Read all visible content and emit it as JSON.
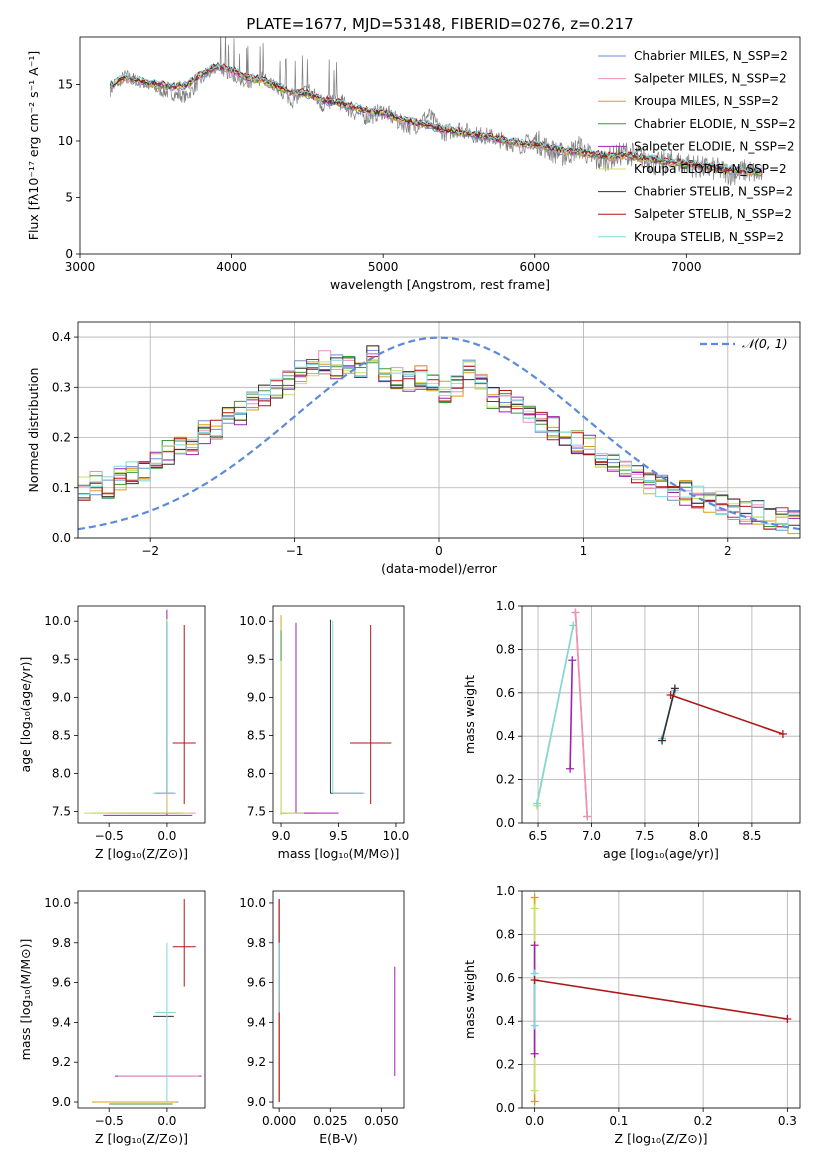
{
  "figure_title": "PLATE=1677, MJD=53148, FIBERID=0276, z=0.217",
  "model_colors": [
    "#6a8fd6",
    "#ef8ebf",
    "#d4a017",
    "#3a9a3a",
    "#a020b0",
    "#c8e06a",
    "#333333",
    "#b01717",
    "#7fd8e0"
  ],
  "chart_data": [
    {
      "id": "spectrum",
      "type": "line",
      "xlabel": "wavelength [Angstrom, rest frame]",
      "ylabel": "Flux [fλ10⁻¹⁷ erg cm⁻² s⁻¹ A⁻¹]",
      "xlim": [
        3000,
        7750
      ],
      "ylim": [
        0,
        19.2
      ],
      "xticks": [
        3000,
        4000,
        5000,
        6000,
        7000
      ],
      "yticks": [
        0,
        5,
        10,
        15
      ],
      "grid": false,
      "legend_position": "top-right",
      "data_color": "#808080",
      "x": [
        3200,
        3300,
        3400,
        3500,
        3600,
        3700,
        3800,
        3900,
        4000,
        4100,
        4200,
        4300,
        4400,
        4500,
        4600,
        4700,
        4800,
        4900,
        5000,
        5100,
        5200,
        5300,
        5400,
        5500,
        5600,
        5700,
        5800,
        5900,
        6000,
        6100,
        6200,
        6300,
        6400,
        6500,
        6600,
        6700,
        6800,
        6900,
        7000,
        7100,
        7200,
        7300,
        7400,
        7500
      ],
      "data_flux": [
        14.5,
        15.8,
        15.2,
        14.6,
        14.2,
        13.9,
        15.4,
        16.5,
        15.9,
        14.8,
        15.6,
        14.7,
        13.5,
        14.6,
        13.2,
        13.7,
        12.6,
        12.1,
        12.7,
        11.7,
        11.2,
        12.3,
        10.7,
        11.1,
        10.6,
        10.4,
        10.0,
        9.6,
        10.1,
        9.2,
        8.7,
        9.5,
        8.2,
        8.5,
        9.0,
        8.6,
        7.9,
        8.2,
        8.0,
        7.6,
        7.5,
        7.1,
        7.4,
        7.0
      ],
      "model_flux": [
        14.9,
        15.6,
        15.3,
        15.0,
        14.8,
        14.9,
        15.9,
        16.6,
        16.3,
        15.6,
        15.4,
        14.8,
        14.3,
        14.2,
        13.6,
        13.4,
        13.0,
        12.6,
        12.5,
        12.0,
        11.6,
        11.4,
        11.0,
        10.8,
        10.6,
        10.3,
        10.0,
        9.8,
        9.7,
        9.4,
        9.1,
        9.0,
        8.8,
        8.6,
        8.7,
        8.5,
        8.3,
        8.1,
        8.0,
        7.8,
        7.6,
        7.4,
        7.3,
        7.2
      ],
      "series": [
        {
          "name": "Chabrier MILES, N_SSP=2"
        },
        {
          "name": "Salpeter MILES, N_SSP=2"
        },
        {
          "name": "Kroupa MILES, N_SSP=2"
        },
        {
          "name": "Chabrier ELODIE, N_SSP=2"
        },
        {
          "name": "Salpeter ELODIE, N_SSP=2"
        },
        {
          "name": "Kroupa ELODIE, N_SSP=2"
        },
        {
          "name": "Chabrier STELIB, N_SSP=2"
        },
        {
          "name": "Salpeter STELIB, N_SSP=2"
        },
        {
          "name": "Kroupa STELIB, N_SSP=2"
        }
      ]
    },
    {
      "id": "residuals",
      "type": "line",
      "xlabel": "(data-model)/error",
      "ylabel": "Normed distribution",
      "xlim": [
        -2.5,
        2.5
      ],
      "ylim": [
        0,
        0.43
      ],
      "xticks": [
        -2,
        -1,
        0,
        1,
        2
      ],
      "yticks": [
        0.0,
        0.1,
        0.2,
        0.3,
        0.4
      ],
      "grid": true,
      "legend_position": "top-right",
      "gaussian_label": "𝒩(0, 1)",
      "bin_edges_range": [
        -2.5,
        2.5
      ],
      "hist_base": [
        0.1,
        0.11,
        0.1,
        0.12,
        0.13,
        0.13,
        0.15,
        0.17,
        0.18,
        0.19,
        0.21,
        0.22,
        0.24,
        0.25,
        0.27,
        0.28,
        0.3,
        0.31,
        0.33,
        0.34,
        0.35,
        0.34,
        0.35,
        0.34,
        0.36,
        0.33,
        0.32,
        0.31,
        0.32,
        0.3,
        0.29,
        0.3,
        0.33,
        0.31,
        0.28,
        0.27,
        0.26,
        0.24,
        0.23,
        0.22,
        0.2,
        0.19,
        0.18,
        0.16,
        0.15,
        0.14,
        0.13,
        0.11,
        0.1,
        0.09,
        0.09,
        0.08,
        0.07,
        0.07,
        0.06,
        0.05,
        0.05,
        0.04,
        0.04,
        0.03
      ]
    },
    {
      "id": "age_vs_Z",
      "type": "scatter",
      "xlabel": "Z [log₁₀(Z/Z⊙)]",
      "ylabel": "age  [log₁₀(age/yr)]",
      "xlim": [
        -0.77,
        0.33
      ],
      "ylim": [
        7.35,
        10.2
      ],
      "xticks": [
        -0.5,
        0.0
      ],
      "yticks": [
        7.5,
        8.0,
        8.5,
        9.0,
        9.5,
        10.0
      ],
      "grid": false,
      "points": [
        {
          "s": 0,
          "x": 0.0,
          "y": 7.48,
          "xerr": [
            0.12,
            0.12
          ],
          "yerr": [
            0.02,
            0.02
          ]
        },
        {
          "s": 1,
          "x": 0.0,
          "y": 7.48,
          "xerr": [
            0.4,
            0.25
          ],
          "yerr": [
            0.02,
            0.02
          ]
        },
        {
          "s": 2,
          "x": 0.0,
          "y": 7.48,
          "xerr": [
            0.65,
            0.15
          ],
          "yerr": [
            0.02,
            0.02
          ]
        },
        {
          "s": 3,
          "x": 0.0,
          "y": 7.48,
          "xerr": [
            0.5,
            0.1
          ],
          "yerr": [
            0.02,
            0.02
          ]
        },
        {
          "s": 4,
          "x": 0.0,
          "y": 7.45,
          "xerr": [
            0.55,
            0.22
          ],
          "yerr": [
            0.0,
            2.7
          ]
        },
        {
          "s": 5,
          "x": 0.0,
          "y": 7.48,
          "xerr": [
            0.72,
            0.2
          ],
          "yerr": [
            0.0,
            2.55
          ]
        },
        {
          "s": 6,
          "x": 0.0,
          "y": 7.74,
          "xerr": [
            0.1,
            0.06
          ],
          "yerr": [
            0.0,
            2.25
          ]
        },
        {
          "s": 7,
          "x": 0.15,
          "y": 8.4,
          "xerr": [
            0.1,
            0.1
          ],
          "yerr": [
            0.8,
            1.55
          ]
        },
        {
          "s": 8,
          "x": 0.0,
          "y": 7.74,
          "xerr": [
            0.12,
            0.08
          ],
          "yerr": [
            0.0,
            2.27
          ]
        }
      ]
    },
    {
      "id": "age_vs_mass",
      "type": "scatter",
      "xlabel": "mass [log₁₀(M/M⊙)]",
      "ylabel": "",
      "xlim": [
        8.93,
        10.07
      ],
      "ylim": [
        7.35,
        10.2
      ],
      "xticks": [
        9.0,
        9.5,
        10.0
      ],
      "yticks": [
        7.5,
        8.0,
        8.5,
        9.0,
        9.5,
        10.0
      ],
      "grid": false,
      "points": [
        {
          "s": 0,
          "x": 9.0,
          "y": 7.48,
          "xerr": [
            0.0,
            0.12
          ],
          "yerr": [
            0.02,
            0.02
          ]
        },
        {
          "s": 1,
          "x": 9.0,
          "y": 7.48,
          "xerr": [
            0.0,
            0.3
          ],
          "yerr": [
            0.02,
            0.02
          ]
        },
        {
          "s": 2,
          "x": 9.0,
          "y": 7.48,
          "xerr": [
            0.0,
            0.08
          ],
          "yerr": [
            0.0,
            2.6
          ]
        },
        {
          "s": 3,
          "x": 9.0,
          "y": 7.48,
          "xerr": [
            0.0,
            0.05
          ],
          "yerr": [
            0.0,
            2.4
          ]
        },
        {
          "s": 4,
          "x": 9.13,
          "y": 7.48,
          "xerr": [
            0.0,
            0.37
          ],
          "yerr": [
            0.0,
            2.5
          ]
        },
        {
          "s": 5,
          "x": 9.0,
          "y": 7.48,
          "xerr": [
            0.0,
            0.2
          ],
          "yerr": [
            0.0,
            2.0
          ]
        },
        {
          "s": 6,
          "x": 9.43,
          "y": 7.74,
          "xerr": [
            0.0,
            0.28
          ],
          "yerr": [
            0.0,
            2.28
          ]
        },
        {
          "s": 7,
          "x": 9.78,
          "y": 8.4,
          "xerr": [
            0.18,
            0.18
          ],
          "yerr": [
            0.8,
            1.55
          ]
        },
        {
          "s": 8,
          "x": 9.45,
          "y": 7.74,
          "xerr": [
            0.0,
            0.28
          ],
          "yerr": [
            0.0,
            2.27
          ]
        }
      ]
    },
    {
      "id": "weight_vs_age",
      "type": "line",
      "xlabel": "age  [log₁₀(age/yr)]",
      "ylabel": "mass weight",
      "xlim": [
        6.35,
        8.95
      ],
      "ylim": [
        0.0,
        1.0
      ],
      "xticks": [
        6.5,
        7.0,
        7.5,
        8.0,
        8.5
      ],
      "yticks": [
        0.0,
        0.2,
        0.4,
        0.6,
        0.8,
        1.0
      ],
      "grid": true,
      "segments": [
        {
          "s": 5,
          "x": [
            6.49,
            6.83
          ],
          "y": [
            0.08,
            0.91
          ]
        },
        {
          "s": 8,
          "x": [
            6.49,
            6.83
          ],
          "y": [
            0.09,
            0.91
          ]
        },
        {
          "s": 4,
          "x": [
            6.8,
            6.82
          ],
          "y": [
            0.25,
            0.75
          ]
        },
        {
          "s": 2,
          "x": [
            6.85,
            6.96
          ],
          "y": [
            0.97,
            0.03
          ]
        },
        {
          "s": 1,
          "x": [
            6.85,
            6.96
          ],
          "y": [
            0.97,
            0.03
          ]
        },
        {
          "s": 8,
          "x": [
            7.66,
            7.78
          ],
          "y": [
            0.39,
            0.61
          ]
        },
        {
          "s": 6,
          "x": [
            7.66,
            7.78
          ],
          "y": [
            0.38,
            0.62
          ]
        },
        {
          "s": 7,
          "x": [
            7.74,
            8.79
          ],
          "y": [
            0.59,
            0.41
          ]
        }
      ]
    },
    {
      "id": "mass_vs_Z",
      "type": "scatter",
      "xlabel": "Z [log₁₀(Z/Z⊙)]",
      "ylabel": "mass [log₁₀(M/M⊙)]",
      "xlim": [
        -0.77,
        0.33
      ],
      "ylim": [
        8.97,
        10.06
      ],
      "xticks": [
        -0.5,
        0.0
      ],
      "yticks": [
        9.0,
        9.2,
        9.4,
        9.6,
        9.8,
        10.0
      ],
      "grid": false,
      "points": [
        {
          "s": 0,
          "x": 0.0,
          "y": 9.0,
          "xerr": [
            0.6,
            0.1
          ],
          "yerr": [
            0.0,
            0.0
          ]
        },
        {
          "s": 2,
          "x": 0.0,
          "y": 9.0,
          "xerr": [
            0.65,
            0.08
          ],
          "yerr": [
            0.0,
            0.0
          ]
        },
        {
          "s": 3,
          "x": 0.0,
          "y": 8.99,
          "xerr": [
            0.5,
            0.05
          ],
          "yerr": [
            0.0,
            0.0
          ]
        },
        {
          "s": 4,
          "x": 0.0,
          "y": 9.13,
          "xerr": [
            0.45,
            0.3
          ],
          "yerr": [
            0.0,
            0.0
          ]
        },
        {
          "s": 1,
          "x": 0.0,
          "y": 9.13,
          "xerr": [
            0.42,
            0.28
          ],
          "yerr": [
            0.0,
            0.0
          ]
        },
        {
          "s": 5,
          "x": 0.0,
          "y": 9.45,
          "xerr": [
            0.1,
            0.08
          ],
          "yerr": [
            0.0,
            0.0
          ]
        },
        {
          "s": 6,
          "x": 0.0,
          "y": 9.43,
          "xerr": [
            0.12,
            0.06
          ],
          "yerr": [
            0.0,
            0.0
          ]
        },
        {
          "s": 8,
          "x": 0.0,
          "y": 9.45,
          "xerr": [
            0.1,
            0.06
          ],
          "yerr": [
            0.45,
            0.35
          ]
        },
        {
          "s": 7,
          "x": 0.15,
          "y": 9.78,
          "xerr": [
            0.1,
            0.1
          ],
          "yerr": [
            0.2,
            0.24
          ]
        }
      ]
    },
    {
      "id": "mass_vs_EBV",
      "type": "scatter",
      "xlabel": "E(B-V)",
      "ylabel": "",
      "xlim": [
        -0.003,
        0.061
      ],
      "ylim": [
        8.97,
        10.06
      ],
      "xticks": [
        0.0,
        0.025,
        0.05
      ],
      "yticks": [
        9.0,
        9.2,
        9.4,
        9.6,
        9.8,
        10.0
      ],
      "grid": false,
      "points": [
        {
          "s": 6,
          "x": 0.0,
          "y": 9.2,
          "xerr": [
            0,
            0
          ],
          "yerr": [
            0.2,
            0.82
          ]
        },
        {
          "s": 1,
          "x": 0.0,
          "y": 9.4,
          "xerr": [
            0,
            0
          ],
          "yerr": [
            0.4,
            0.4
          ]
        },
        {
          "s": 2,
          "x": 0.0,
          "y": 9.25,
          "xerr": [
            0,
            0
          ],
          "yerr": [
            0.25,
            0.3
          ]
        },
        {
          "s": 7,
          "x": 0.0,
          "y": 9.5,
          "xerr": [
            0,
            0
          ],
          "yerr": [
            0.5,
            0.52
          ]
        },
        {
          "s": 8,
          "x": 0.0,
          "y": 9.6,
          "xerr": [
            0,
            0
          ],
          "yerr": [
            0.15,
            0.2
          ]
        },
        {
          "s": 4,
          "x": 0.0565,
          "y": 9.4,
          "xerr": [
            0,
            0
          ],
          "yerr": [
            0.27,
            0.28
          ]
        }
      ]
    },
    {
      "id": "weight_vs_Z",
      "type": "line",
      "xlabel": "Z [log₁₀(Z/Z⊙)]",
      "ylabel": "mass weight",
      "xlim": [
        -0.015,
        0.315
      ],
      "ylim": [
        0.0,
        1.0
      ],
      "xticks": [
        0.0,
        0.1,
        0.2,
        0.3
      ],
      "yticks": [
        0.0,
        0.2,
        0.4,
        0.6,
        0.8,
        1.0
      ],
      "grid": true,
      "segments": [
        {
          "s": 2,
          "x": [
            0.0,
            0.0
          ],
          "y": [
            0.03,
            0.97
          ]
        },
        {
          "s": 5,
          "x": [
            0.0,
            0.0
          ],
          "y": [
            0.08,
            0.92
          ]
        },
        {
          "s": 4,
          "x": [
            0.0,
            0.0
          ],
          "y": [
            0.25,
            0.75
          ]
        },
        {
          "s": 8,
          "x": [
            0.0,
            0.0
          ],
          "y": [
            0.38,
            0.62
          ]
        },
        {
          "s": 7,
          "x": [
            0.0,
            0.3
          ],
          "y": [
            0.59,
            0.41
          ]
        }
      ]
    }
  ]
}
